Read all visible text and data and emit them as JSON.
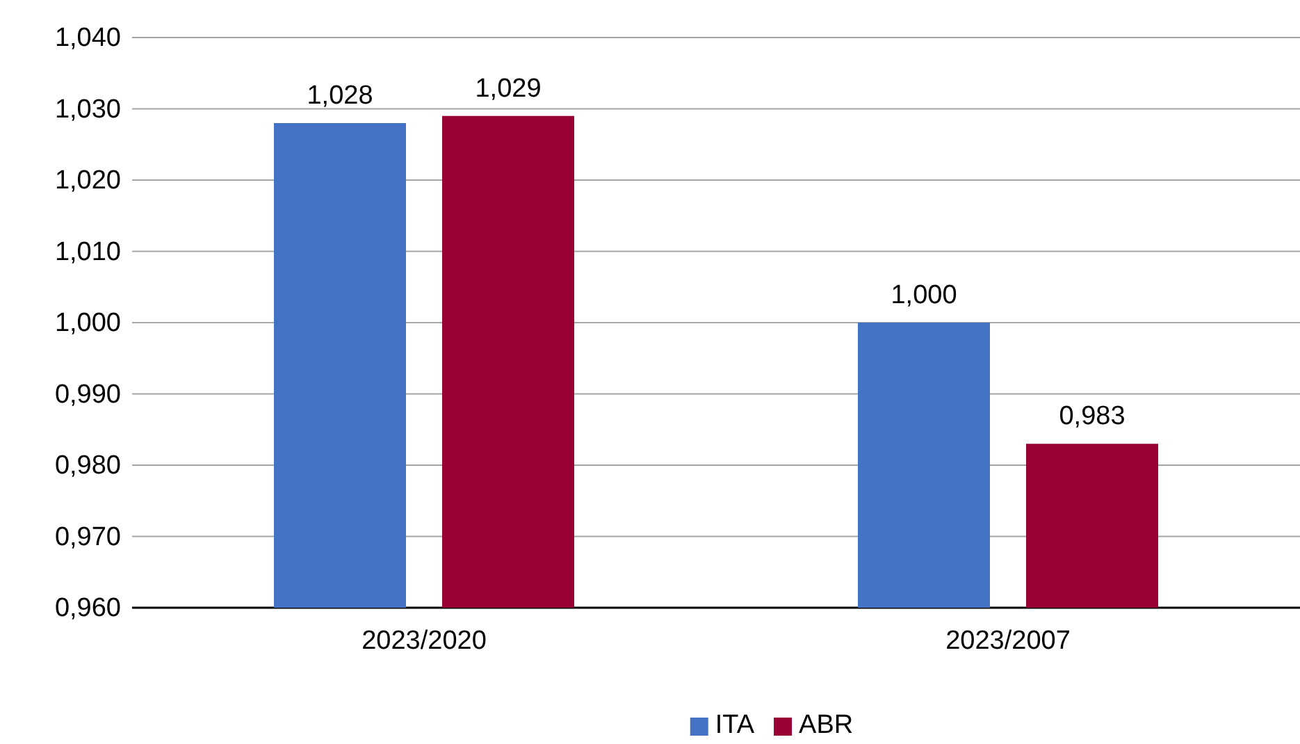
{
  "chart_data": {
    "type": "bar",
    "categories": [
      "2023/2020",
      "2023/2007"
    ],
    "series": [
      {
        "name": "ITA",
        "color": "#4472c4",
        "values": [
          1.028,
          1.0
        ],
        "value_labels": [
          "1,028",
          "1,000"
        ]
      },
      {
        "name": "ABR",
        "color": "#990033",
        "values": [
          1.029,
          0.983
        ],
        "value_labels": [
          "1,029",
          "0,983"
        ]
      }
    ],
    "ylim": [
      0.96,
      1.04
    ],
    "yticks": [
      {
        "value": 0.96,
        "label": "0,960"
      },
      {
        "value": 0.97,
        "label": "0,970"
      },
      {
        "value": 0.98,
        "label": "0,980"
      },
      {
        "value": 0.99,
        "label": "0,990"
      },
      {
        "value": 1.0,
        "label": "1,000"
      },
      {
        "value": 1.01,
        "label": "1,010"
      },
      {
        "value": 1.02,
        "label": "1,020"
      },
      {
        "value": 1.03,
        "label": "1,030"
      },
      {
        "value": 1.04,
        "label": "1,040"
      }
    ],
    "grid": "y",
    "legend": "bottom"
  }
}
